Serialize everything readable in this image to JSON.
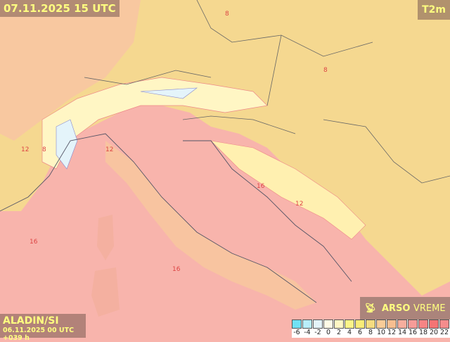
{
  "header": {
    "valid_time": "07.11.2025 15 UTC",
    "parameter": "T2m"
  },
  "model": {
    "name": "ALADIN/SI",
    "run": "06.11.2025 00 UTC +039 h"
  },
  "brand": {
    "bold": "ARSO",
    "thin": "VREME",
    "icon": "satellite-dish-icon"
  },
  "map_labels": [
    "8",
    "12",
    "16",
    "8",
    "12",
    "16",
    "8",
    "16",
    "12"
  ],
  "legend": {
    "labels": [
      "-6",
      "-4",
      "-2",
      "0",
      "2",
      "4",
      "6",
      "8",
      "10",
      "12",
      "14",
      "16",
      "18",
      "20",
      "22"
    ],
    "colors": [
      "#70e2f4",
      "#b8eefa",
      "#e4f4fa",
      "#fffbe6",
      "#fff6c4",
      "#fcf488",
      "#f8ec78",
      "#f5dc80",
      "#f8cc98",
      "#f6be90",
      "#f6ae9e",
      "#f69c98",
      "#f68484",
      "#f47474",
      "#f48c8c"
    ]
  },
  "colors": {
    "sea": "#f8b4ac",
    "land_north": "#f5dc90",
    "mountain": "#fff6c4"
  }
}
